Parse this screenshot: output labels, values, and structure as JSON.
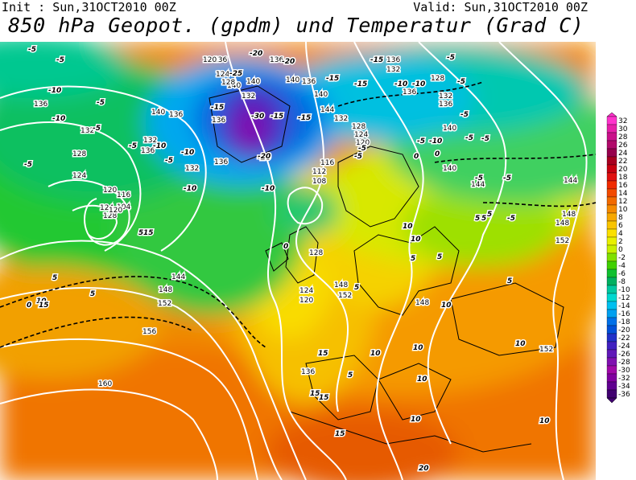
{
  "header": {
    "init": "Init : Sun,31OCT2010 00Z",
    "valid": "Valid: Sun,31OCT2010 00Z",
    "title": "850 hPa Geopot. (gpdm) und Temperatur (Grad C)"
  },
  "legend": {
    "labels": [
      "32",
      "30",
      "28",
      "26",
      "24",
      "22",
      "20",
      "18",
      "16",
      "14",
      "12",
      "10",
      "8",
      "6",
      "4",
      "2",
      "0",
      "-2",
      "-4",
      "-6",
      "-8",
      "-10",
      "-12",
      "-14",
      "-16",
      "-18",
      "-20",
      "-22",
      "-24",
      "-26",
      "-28",
      "-30",
      "-32",
      "-34",
      "-36"
    ],
    "colors": [
      "#ff33cc",
      "#e61fa8",
      "#c9108a",
      "#b00a6a",
      "#96004c",
      "#a80020",
      "#c80010",
      "#e01010",
      "#f02a00",
      "#f24a00",
      "#f26a00",
      "#f58a00",
      "#f7a800",
      "#f9c400",
      "#fbe000",
      "#e8f000",
      "#c8f000",
      "#80e000",
      "#40d000",
      "#10c030",
      "#00b060",
      "#00c8a0",
      "#00d8d0",
      "#00c0f0",
      "#00a0f0",
      "#0070e8",
      "#0050d8",
      "#2030c8",
      "#4020c0",
      "#6018b8",
      "#8010b0",
      "#a008a8",
      "#8000a0",
      "#600090",
      "#400070"
    ]
  },
  "map": {
    "colors": {
      "land_border": "#000000",
      "geopot_contour": "#ffffff",
      "temp_contour": "#000000"
    },
    "geopotential_labels": [
      "136",
      "132",
      "128",
      "124",
      "120",
      "116",
      "104",
      "140",
      "136",
      "136",
      "132",
      "136",
      "140",
      "140",
      "136",
      "132",
      "136",
      "120",
      "124",
      "128",
      "132",
      "136",
      "140",
      "144",
      "148",
      "152",
      "156",
      "160",
      "128",
      "124",
      "120",
      "112",
      "108",
      "116",
      "120",
      "124",
      "128",
      "132",
      "136",
      "140",
      "144",
      "148",
      "152",
      "144",
      "148",
      "152",
      "140",
      "136",
      "132",
      "128",
      "128",
      "124",
      "120",
      "148",
      "136",
      "136",
      "132",
      "136",
      "140",
      "144",
      "148",
      "152"
    ],
    "temperature_labels": [
      "-5",
      "-5",
      "-10",
      "-5",
      "-5",
      "-10",
      "-5",
      "-10",
      "-10",
      "-10",
      "-5",
      "-5",
      "-15",
      "-20",
      "-20",
      "-25",
      "-30",
      "-20",
      "-15",
      "-15",
      "-15",
      "-15",
      "-10",
      "-10",
      "-5",
      "-5",
      "-10",
      "-5",
      "-5",
      "-5",
      "0",
      "-5",
      "0",
      "-5",
      "-5",
      "-10",
      "-20",
      "-15",
      "-5",
      "-5",
      "0",
      "5",
      "0",
      "5",
      "5",
      "10",
      "15",
      "15",
      "10",
      "10",
      "5",
      "5",
      "5",
      "10",
      "10",
      "10",
      "10",
      "15",
      "15",
      "10",
      "15",
      "20",
      "5",
      "15",
      "10",
      "5",
      "10",
      "-5",
      "5",
      "5",
      "5"
    ]
  }
}
